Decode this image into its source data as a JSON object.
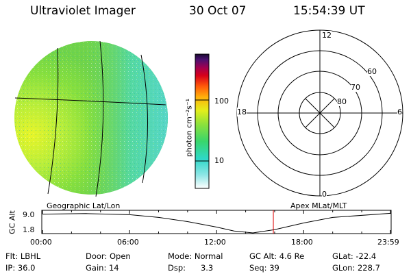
{
  "header": {
    "title": "Ultraviolet Imager",
    "date": "30 Oct 07",
    "time": "15:54:39 UT"
  },
  "colorbar": {
    "unit_label": "photon cm⁻²s⁻¹",
    "tick_labels": [
      "100",
      "10"
    ]
  },
  "polar_plot": {
    "mlt_labels": [
      "12",
      "18",
      "6",
      "0"
    ],
    "mlat_labels": [
      "60",
      "70",
      "80"
    ]
  },
  "timeline": {
    "left_label": "Geographic Lat/Lon",
    "right_label": "Apex MLat/MLT",
    "y_axis_label": "GC Alt",
    "y_tick_labels": [
      "9.0",
      "1.8"
    ],
    "x_tick_labels": [
      "00:00",
      "06:00",
      "12:00",
      "18:00",
      "23:59"
    ]
  },
  "chart_data": [
    {
      "type": "heatmap",
      "title": "Ultraviolet Imager",
      "colorbar_scale": "log",
      "colorbar_ticks": [
        10,
        100
      ],
      "colorbar_label": "photon cm-2s-1"
    },
    {
      "type": "line",
      "xlabel": "",
      "ylabel": "GC Alt",
      "x_range_hours": [
        0,
        23.98
      ],
      "ylim": [
        1.8,
        9.0
      ],
      "x_hours": [
        0,
        3,
        6,
        8,
        10,
        12,
        13.2,
        14.5,
        16,
        18,
        20,
        23.98
      ],
      "y": [
        8.6,
        8.8,
        8.4,
        7.4,
        5.9,
        3.9,
        2.5,
        1.8,
        3.0,
        5.4,
        7.4,
        8.9
      ],
      "current_time_hours": 15.91,
      "current_time_color": "#dd0000"
    }
  ],
  "info": {
    "rows": [
      [
        "Flt: LBHL",
        "Door: Open",
        "Mode: Normal",
        "GC Alt: 4.6 Re",
        "GLat: -22.4"
      ],
      [
        "IP: 36.0",
        "Gain: 14",
        "Dsp:      3.3",
        "Seq: 39",
        "GLon: 228.7"
      ]
    ]
  }
}
